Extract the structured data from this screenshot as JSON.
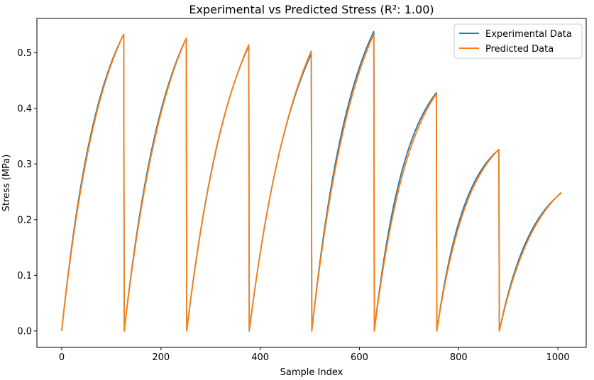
{
  "chart_data": {
    "type": "line",
    "title": "Experimental vs Predicted Stress (R²: 1.00)",
    "xlabel": "Sample Index",
    "ylabel": "Stress (MPa)",
    "xlim": [
      -50,
      1057
    ],
    "ylim": [
      -0.0295,
      0.5615
    ],
    "xticks": [
      0,
      200,
      400,
      600,
      800,
      1000
    ],
    "yticks": [
      0.0,
      0.1,
      0.2,
      0.3,
      0.4,
      0.5
    ],
    "xtick_labels": [
      "0",
      "200",
      "400",
      "600",
      "800",
      "1000"
    ],
    "ytick_labels": [
      "0.0",
      "0.1",
      "0.2",
      "0.3",
      "0.4",
      "0.5"
    ],
    "grid": false,
    "legend_position": "top-right",
    "cycle_start_indices": [
      0,
      126,
      252,
      378,
      504,
      630,
      756,
      882
    ],
    "cycle_end_index": 1007,
    "series": [
      {
        "name": "Experimental Data",
        "color": "#1f77b4",
        "cycle_peaks": [
          0.533,
          0.526,
          0.512,
          0.498,
          0.538,
          0.428,
          0.326,
          0.248
        ],
        "cycle_curvature": [
          1.6,
          1.45,
          1.35,
          1.3,
          1.5,
          1.9,
          2.1,
          1.8
        ]
      },
      {
        "name": "Predicted Data",
        "color": "#ff7f0e",
        "cycle_peaks": [
          0.533,
          0.526,
          0.514,
          0.503,
          0.533,
          0.426,
          0.326,
          0.249
        ],
        "cycle_curvature": [
          1.5,
          1.35,
          1.3,
          1.25,
          1.4,
          1.7,
          1.9,
          1.6
        ]
      }
    ]
  }
}
